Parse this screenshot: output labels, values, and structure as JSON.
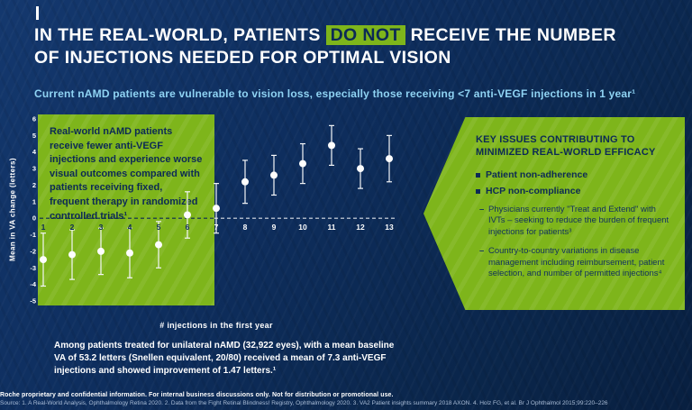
{
  "title": {
    "line1_pre": "IN THE REAL-WORLD, PATIENTS",
    "highlight": "DO NOT",
    "line1_post": "RECEIVE THE NUMBER",
    "line2": "OF INJECTIONS NEEDED FOR OPTIMAL VISION"
  },
  "subtitle": "Current nAMD patients are vulnerable to vision loss, especially those receiving <7 anti-VEGF injections in 1 year¹",
  "chart_data": {
    "type": "scatter",
    "x": [
      1,
      2,
      3,
      4,
      5,
      6,
      7,
      8,
      9,
      10,
      11,
      12,
      13
    ],
    "values": [
      -2.5,
      -2.2,
      -2.0,
      -2.1,
      -1.6,
      0.2,
      0.6,
      2.2,
      2.6,
      3.3,
      4.4,
      3.0,
      3.6
    ],
    "error_low": [
      -4.1,
      -3.7,
      -3.4,
      -3.6,
      -3.0,
      -1.2,
      -0.9,
      0.9,
      1.4,
      2.1,
      3.2,
      1.8,
      2.2
    ],
    "error_high": [
      -0.9,
      -0.7,
      -0.6,
      -0.6,
      -0.2,
      1.6,
      2.1,
      3.5,
      3.8,
      4.5,
      5.6,
      4.2,
      5.0
    ],
    "xlabel": "# injections in the first year",
    "ylabel": "Mean in VA change (letters)",
    "ylim": [
      -5,
      6
    ],
    "yticks": [
      6,
      5,
      4,
      3,
      2,
      1,
      0,
      -1,
      -2,
      -3,
      -4,
      -5
    ],
    "zero_line": "dashed",
    "grid": "off",
    "legend": "none",
    "annotation": "Real-world nAMD patients receive fewer anti-VEGF injections and experience worse visual outcomes compared with patients receiving fixed, frequent therapy in randomized controlled trials¹"
  },
  "key_issues": {
    "heading": "KEY ISSUES CONTRIBUTING TO MINIMIZED REAL-WORLD EFFICACY",
    "bullets": [
      "Patient non-adherence",
      "HCP non-compliance"
    ],
    "sub_bullets": [
      "Physicians currently \"Treat and Extend\" with IVTs – seeking to reduce the burden of frequent injections for patients³",
      "Country-to-country variations in disease management including reimbursement, patient selection, and number of permitted injections⁴"
    ]
  },
  "summary": "Among patients treated for unilateral nAMD (32,922 eyes), with a mean baseline VA of 53.2 letters (Snellen equivalent, 20/80) received a mean of 7.3 anti-VEGF injections and showed improvement of 1.47 letters.¹",
  "footer": {
    "confidential": "Roche proprietary and confidential information. For internal business discussions only. Not for distribution or promotional use.",
    "sources": "Source: 1. A Real-World Analysis, Ophthalmology Retina 2020. 2. Data from the Fight Retinal Blindness! Registry, Ophthalmology 2020. 3. VA2 Patient insights summary 2018 AXON. 4. Holz FG, et al. Br J Ophthalmol 2015;99:220–226"
  },
  "colors": {
    "background_navy": "#0e2e5e",
    "accent_green": "#7eb51b",
    "subtitle_blue": "#8fd3f3",
    "navy_text": "#0c2a55",
    "white": "#ffffff"
  }
}
